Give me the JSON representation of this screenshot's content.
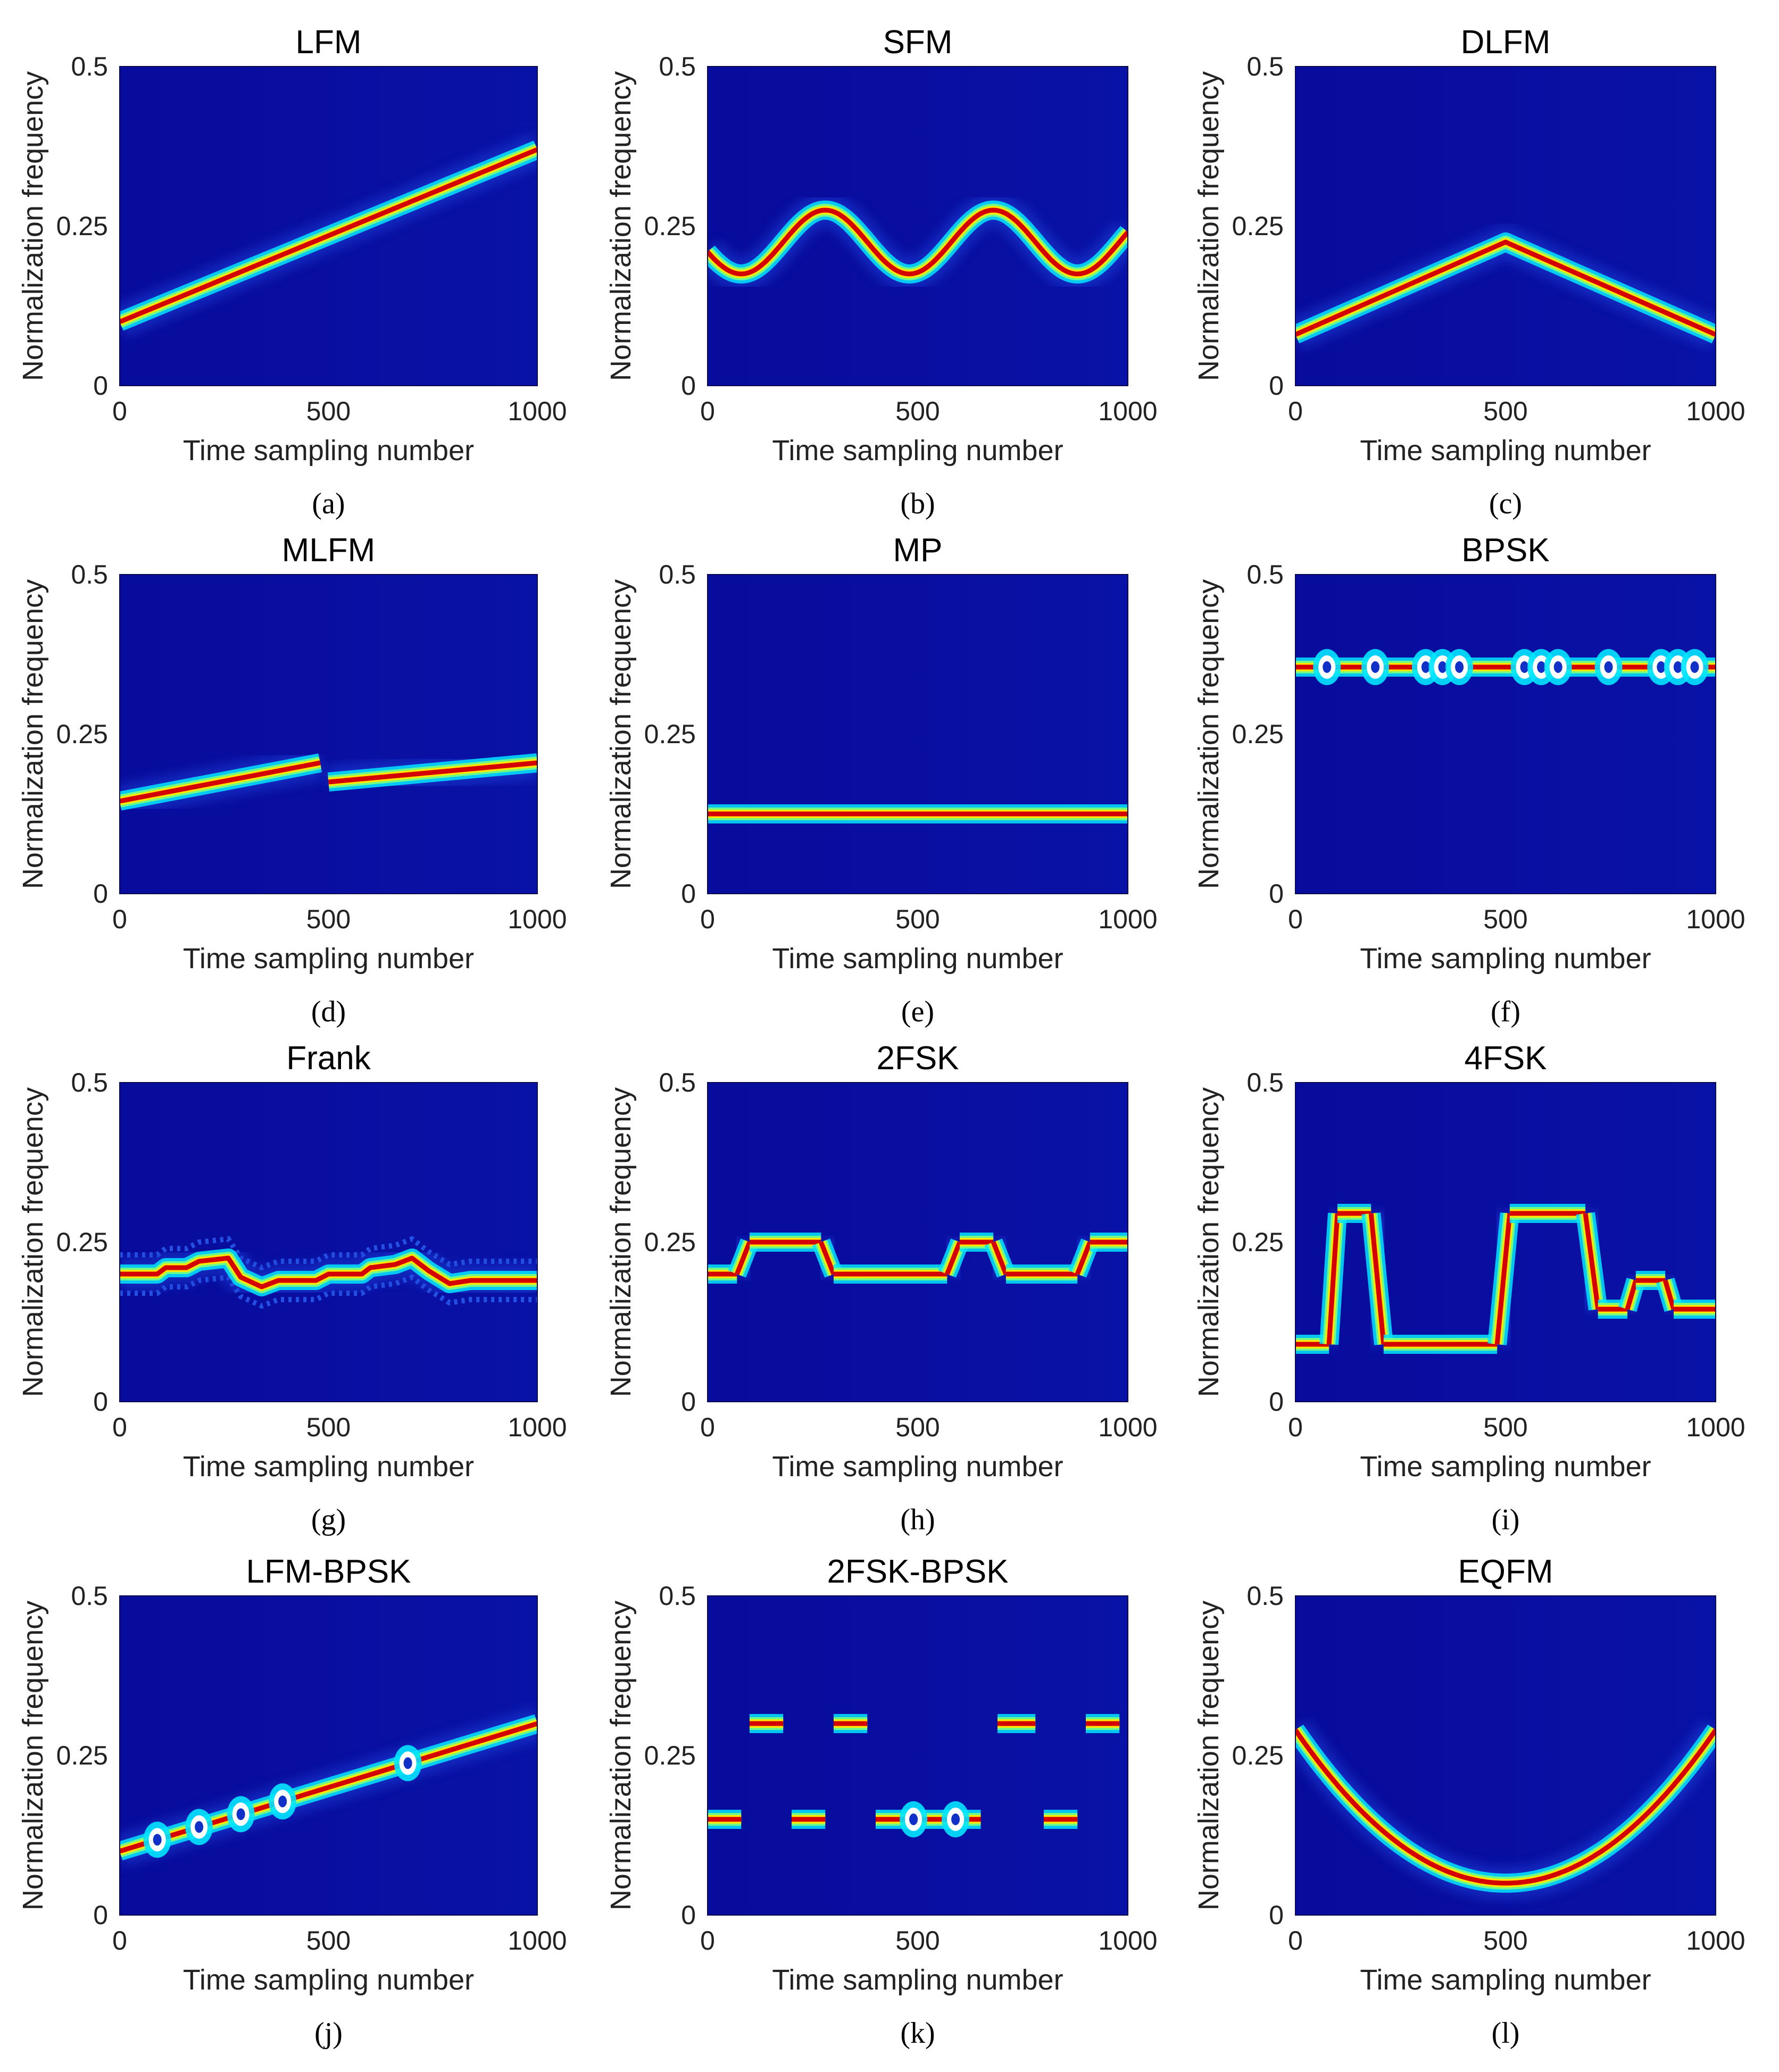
{
  "figure": {
    "description_labels": "Time-frequency images of twelve radar signal modulation types"
  },
  "colors": {
    "background": "#0a0f9a",
    "cool": "#0000a8",
    "band_edge": "#00e5ff",
    "band_mid": "#ffe800",
    "band_core": "#d40000"
  },
  "chart_data": [
    {
      "id": "a",
      "caption": "(a)",
      "title": "LFM",
      "type": "heatmap",
      "kind": "lfm",
      "xlabel": "Time sampling number",
      "ylabel": "Normalization frequency",
      "xlim": [
        0,
        1000
      ],
      "ylim": [
        0,
        0.5
      ],
      "xticks": [
        "0",
        "500",
        "1000"
      ],
      "yticks": [
        "0",
        "0.25",
        "0.5"
      ],
      "curve": [
        [
          0,
          0.1
        ],
        [
          1000,
          0.37
        ]
      ]
    },
    {
      "id": "b",
      "caption": "(b)",
      "title": "SFM",
      "type": "heatmap",
      "kind": "sfm",
      "xlabel": "Time sampling number",
      "ylabel": "Normalization frequency",
      "xlim": [
        0,
        1000
      ],
      "ylim": [
        0,
        0.5
      ],
      "xticks": [
        "0",
        "500",
        "1000"
      ],
      "yticks": [
        "0",
        "0.25",
        "0.5"
      ],
      "center": 0.225,
      "amplitude": 0.05,
      "period": 400,
      "peak_at": 280
    },
    {
      "id": "c",
      "caption": "(c)",
      "title": "DLFM",
      "type": "heatmap",
      "kind": "dlfm",
      "xlabel": "Time sampling number",
      "ylabel": "Normalization frequency",
      "xlim": [
        0,
        1000
      ],
      "ylim": [
        0,
        0.5
      ],
      "xticks": [
        "0",
        "500",
        "1000"
      ],
      "yticks": [
        "0",
        "0.25",
        "0.5"
      ],
      "curve": [
        [
          0,
          0.08
        ],
        [
          500,
          0.225
        ],
        [
          1000,
          0.08
        ]
      ]
    },
    {
      "id": "d",
      "caption": "(d)",
      "title": "MLFM",
      "type": "heatmap",
      "kind": "mlfm",
      "xlabel": "Time sampling number",
      "ylabel": "Normalization frequency",
      "xlim": [
        0,
        1000
      ],
      "ylim": [
        0,
        0.5
      ],
      "xticks": [
        "0",
        "500",
        "1000"
      ],
      "yticks": [
        "0",
        "0.25",
        "0.5"
      ],
      "segments": [
        [
          [
            0,
            0.145
          ],
          [
            480,
            0.205
          ]
        ],
        [
          [
            500,
            0.175
          ],
          [
            1000,
            0.205
          ]
        ]
      ]
    },
    {
      "id": "e",
      "caption": "(e)",
      "title": "MP",
      "type": "heatmap",
      "kind": "mp",
      "xlabel": "Time sampling number",
      "ylabel": "Normalization frequency",
      "xlim": [
        0,
        1000
      ],
      "ylim": [
        0,
        0.5
      ],
      "xticks": [
        "0",
        "500",
        "1000"
      ],
      "yticks": [
        "0",
        "0.25",
        "0.5"
      ],
      "curve": [
        [
          0,
          0.125
        ],
        [
          1000,
          0.125
        ]
      ]
    },
    {
      "id": "f",
      "caption": "(f)",
      "title": "BPSK",
      "type": "heatmap",
      "kind": "bpsk",
      "xlabel": "Time sampling number",
      "ylabel": "Normalization frequency",
      "xlim": [
        0,
        1000
      ],
      "ylim": [
        0,
        0.5
      ],
      "xticks": [
        "0",
        "500",
        "1000"
      ],
      "yticks": [
        "0",
        "0.25",
        "0.5"
      ],
      "freq": 0.355,
      "phase_changes": [
        75,
        190,
        310,
        350,
        390,
        545,
        585,
        625,
        745,
        870,
        910,
        950
      ]
    },
    {
      "id": "g",
      "caption": "(g)",
      "title": "Frank",
      "type": "heatmap",
      "kind": "frank",
      "xlabel": "Time sampling number",
      "ylabel": "Normalization frequency",
      "xlim": [
        0,
        1000
      ],
      "ylim": [
        0,
        0.5
      ],
      "xticks": [
        "0",
        "500",
        "1000"
      ],
      "yticks": [
        "0",
        "0.25",
        "0.5"
      ],
      "curve": [
        [
          0,
          0.2
        ],
        [
          90,
          0.2
        ],
        [
          110,
          0.21
        ],
        [
          160,
          0.21
        ],
        [
          190,
          0.22
        ],
        [
          260,
          0.225
        ],
        [
          290,
          0.195
        ],
        [
          340,
          0.18
        ],
        [
          380,
          0.19
        ],
        [
          470,
          0.19
        ],
        [
          500,
          0.2
        ],
        [
          580,
          0.2
        ],
        [
          600,
          0.21
        ],
        [
          660,
          0.215
        ],
        [
          700,
          0.225
        ],
        [
          740,
          0.205
        ],
        [
          790,
          0.185
        ],
        [
          840,
          0.19
        ],
        [
          1000,
          0.19
        ]
      ]
    },
    {
      "id": "h",
      "caption": "(h)",
      "title": "2FSK",
      "type": "heatmap",
      "kind": "fsk",
      "xlabel": "Time sampling number",
      "ylabel": "Normalization frequency",
      "xlim": [
        0,
        1000
      ],
      "ylim": [
        0,
        0.5
      ],
      "xticks": [
        "0",
        "500",
        "1000"
      ],
      "yticks": [
        "0",
        "0.25",
        "0.5"
      ],
      "hops": [
        [
          0,
          70,
          0.2
        ],
        [
          100,
          270,
          0.25
        ],
        [
          300,
          570,
          0.2
        ],
        [
          600,
          680,
          0.25
        ],
        [
          710,
          880,
          0.2
        ],
        [
          910,
          1000,
          0.25
        ]
      ]
    },
    {
      "id": "i",
      "caption": "(i)",
      "title": "4FSK",
      "type": "heatmap",
      "kind": "fsk",
      "xlabel": "Time sampling number",
      "ylabel": "Normalization frequency",
      "xlim": [
        0,
        1000
      ],
      "ylim": [
        0,
        0.5
      ],
      "xticks": [
        "0",
        "500",
        "1000"
      ],
      "yticks": [
        "0",
        "0.25",
        "0.5"
      ],
      "hops": [
        [
          0,
          80,
          0.09
        ],
        [
          100,
          180,
          0.295
        ],
        [
          210,
          480,
          0.09
        ],
        [
          510,
          690,
          0.295
        ],
        [
          720,
          790,
          0.145
        ],
        [
          810,
          880,
          0.19
        ],
        [
          900,
          1000,
          0.145
        ]
      ]
    },
    {
      "id": "j",
      "caption": "(j)",
      "title": "LFM-BPSK",
      "type": "heatmap",
      "kind": "lfmbpsk",
      "xlabel": "Time sampling number",
      "ylabel": "Normalization frequency",
      "xlim": [
        0,
        1000
      ],
      "ylim": [
        0,
        0.5
      ],
      "xticks": [
        "0",
        "500",
        "1000"
      ],
      "yticks": [
        "0",
        "0.25",
        "0.5"
      ],
      "curve": [
        [
          0,
          0.1
        ],
        [
          1000,
          0.3
        ]
      ],
      "phase_changes": [
        90,
        190,
        290,
        390,
        690
      ]
    },
    {
      "id": "k",
      "caption": "(k)",
      "title": "2FSK-BPSK",
      "type": "heatmap",
      "kind": "fskbpsk",
      "xlabel": "Time sampling number",
      "ylabel": "Normalization frequency",
      "xlim": [
        0,
        1000
      ],
      "ylim": [
        0,
        0.5
      ],
      "xticks": [
        "0",
        "500",
        "1000"
      ],
      "yticks": [
        "0",
        "0.25",
        "0.5"
      ],
      "hops": [
        [
          0,
          80,
          0.15
        ],
        [
          100,
          180,
          0.3
        ],
        [
          200,
          280,
          0.15
        ],
        [
          300,
          380,
          0.3
        ],
        [
          400,
          650,
          0.15
        ],
        [
          690,
          780,
          0.3
        ],
        [
          800,
          880,
          0.15
        ],
        [
          900,
          980,
          0.3
        ]
      ],
      "phase_changes": [
        490,
        590
      ]
    },
    {
      "id": "l",
      "caption": "(l)",
      "title": "EQFM",
      "type": "heatmap",
      "kind": "eqfm",
      "xlabel": "Time sampling number",
      "ylabel": "Normalization frequency",
      "xlim": [
        0,
        1000
      ],
      "ylim": [
        0,
        0.5
      ],
      "xticks": [
        "0",
        "500",
        "1000"
      ],
      "yticks": [
        "0",
        "0.25",
        "0.5"
      ],
      "vertex": [
        500,
        0.05
      ],
      "ends": 0.29
    }
  ]
}
